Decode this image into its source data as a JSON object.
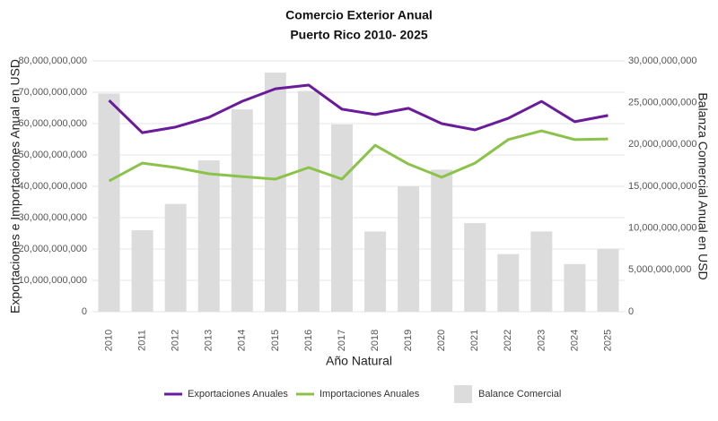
{
  "chart_data": {
    "type": "combo",
    "title": "Comercio Exterior Anual",
    "subtitle": "Puerto Rico 2010- 2025",
    "x_label": "Año Natural",
    "y_label": "Exportaciones e Importaciones Anual en USD",
    "y2_label": "Balanza Comercial Anual en USD",
    "categories": [
      "2010",
      "2011",
      "2012",
      "2013",
      "2014",
      "2015",
      "2016",
      "2017",
      "2018",
      "2019",
      "2020",
      "2021",
      "2022",
      "2023",
      "2024",
      "2025"
    ],
    "series": [
      {
        "name": "Exportaciones Anuales",
        "type": "line",
        "color": "#6a1b9a",
        "axis": "y",
        "values": [
          67400000000,
          57100000000,
          58900000000,
          62000000000,
          67100000000,
          71100000000,
          72300000000,
          64600000000,
          62900000000,
          64900000000,
          60000000000,
          58000000000,
          61700000000,
          67100000000,
          60600000000,
          62600000000
        ]
      },
      {
        "name": "Importaciones Anuales",
        "type": "line",
        "color": "#8bc34a",
        "axis": "y",
        "values": [
          41700000000,
          47400000000,
          46000000000,
          44000000000,
          43100000000,
          42300000000,
          46000000000,
          42300000000,
          53100000000,
          47100000000,
          42900000000,
          47400000000,
          54900000000,
          57700000000,
          54900000000,
          55100000000
        ]
      },
      {
        "name": "Balance Comercial",
        "type": "bar",
        "color": "#dcdcdc",
        "axis": "y2",
        "values": [
          26100000000,
          9750000000,
          12900000000,
          18100000000,
          24200000000,
          28600000000,
          26400000000,
          22400000000,
          9600000000,
          15000000000,
          17000000000,
          10600000000,
          6900000000,
          9600000000,
          5700000000,
          7500000000
        ]
      }
    ],
    "ylim": [
      0,
      80000000000
    ],
    "yticks": [
      0,
      {
        "value": 10000000000,
        "label": "10,000,000,000"
      },
      {
        "value": 20000000000,
        "label": "20,000,000,000"
      },
      {
        "value": 30000000000,
        "label": "30,000,000,000"
      },
      {
        "value": 40000000000,
        "label": "40,000,000,000"
      },
      {
        "value": 50000000000,
        "label": "50,000,000,000"
      },
      {
        "value": 60000000000,
        "label": "60,000,000,000"
      },
      {
        "value": 70000000000,
        "label": "70,000,000,000"
      },
      {
        "value": 80000000000,
        "label": "80,000,000,000"
      }
    ],
    "y2lim": [
      0,
      30000000000
    ],
    "y2ticks": [
      0,
      {
        "value": 5000000000,
        "label": "5,000,000,000"
      },
      {
        "value": 10000000000,
        "label": "10,000,000,000"
      },
      {
        "value": 15000000000,
        "label": "15,000,000,000"
      },
      {
        "value": 20000000000,
        "label": "20,000,000,000"
      },
      {
        "value": 25000000000,
        "label": "25,000,000,000"
      },
      {
        "value": 30000000000,
        "label": "30,000,000,000"
      }
    ],
    "grid": true
  }
}
